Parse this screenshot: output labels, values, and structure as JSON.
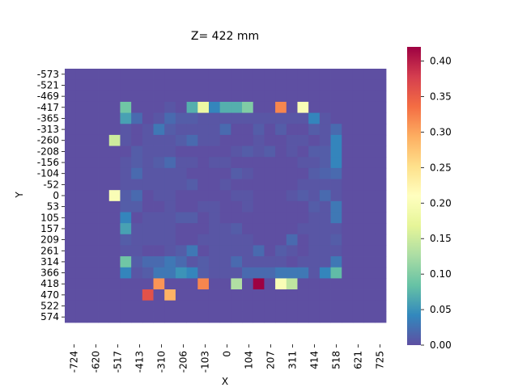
{
  "chart_data": {
    "type": "heatmap",
    "title": "Z= 422 mm",
    "xlabel": "X",
    "ylabel": "Y",
    "x_tick_labels": [
      "-724",
      "-620",
      "-517",
      "-413",
      "-310",
      "-206",
      "-103",
      "0",
      "104",
      "207",
      "311",
      "414",
      "518",
      "621",
      "725"
    ],
    "y_tick_labels": [
      "-573",
      "-521",
      "-469",
      "-417",
      "-365",
      "-313",
      "-260",
      "-208",
      "-156",
      "-104",
      "-52",
      "0",
      "53",
      "105",
      "157",
      "209",
      "261",
      "314",
      "366",
      "418",
      "470",
      "522",
      "574"
    ],
    "colorbar": {
      "colormap": "Spectral_r",
      "min": 0.0,
      "max": 0.42,
      "tick_labels": [
        "0.00",
        "0.05",
        "0.10",
        "0.15",
        "0.20",
        "0.25",
        "0.30",
        "0.35",
        "0.40"
      ]
    },
    "grid": false,
    "cells": [
      [
        0,
        0,
        0,
        0,
        0,
        0,
        0,
        0,
        0,
        0,
        0,
        0,
        0,
        0,
        0,
        0,
        0,
        0,
        0,
        0,
        0,
        0,
        0,
        0,
        0,
        0,
        0,
        0,
        0
      ],
      [
        0,
        0,
        0,
        0,
        0,
        0,
        0,
        0,
        0,
        0,
        0,
        0,
        0,
        0,
        0,
        0,
        0,
        0,
        0,
        0,
        0,
        0,
        0,
        0,
        0,
        0,
        0,
        0,
        0
      ],
      [
        0,
        0,
        0,
        0,
        0,
        0,
        0,
        0,
        0,
        0,
        0,
        0,
        0,
        0,
        0,
        0,
        0,
        0,
        0,
        0,
        0,
        0,
        0,
        0,
        0,
        0,
        0,
        0,
        0
      ],
      [
        0,
        0,
        0,
        0,
        0,
        0.09,
        0,
        0,
        0,
        0.005,
        0,
        0.07,
        0.18,
        0.04,
        0.07,
        0.07,
        0.1,
        0,
        0,
        0.32,
        0,
        0.2,
        0,
        0,
        0,
        0,
        0,
        0,
        0
      ],
      [
        0,
        0,
        0,
        0,
        0,
        0.06,
        0.02,
        0,
        0.005,
        0.02,
        0.01,
        0.01,
        0.005,
        0.005,
        0.005,
        0.005,
        0.005,
        0.005,
        0.005,
        0.005,
        0.005,
        0.005,
        0.04,
        0.005,
        0,
        0,
        0,
        0,
        0
      ],
      [
        0,
        0,
        0,
        0,
        0,
        0.005,
        0,
        0.005,
        0.03,
        0.01,
        0.005,
        0.005,
        0.005,
        0.005,
        0.02,
        0,
        0,
        0.01,
        0,
        0.01,
        0,
        0,
        0.01,
        0.005,
        0.02,
        0,
        0,
        0,
        0
      ],
      [
        0,
        0,
        0,
        0,
        0.15,
        0.005,
        0,
        0.005,
        0.005,
        0.005,
        0.01,
        0.02,
        0.005,
        0.005,
        0,
        0,
        0,
        0.005,
        0,
        0,
        0.005,
        0.005,
        0,
        0.005,
        0.04,
        0,
        0,
        0,
        0
      ],
      [
        0,
        0,
        0,
        0,
        0,
        0,
        0.01,
        0.005,
        0.005,
        0.005,
        0,
        0,
        0,
        0,
        0,
        0.005,
        0.01,
        0.005,
        0.01,
        0,
        0.005,
        0,
        0.01,
        0.01,
        0.04,
        0,
        0,
        0,
        0
      ],
      [
        0,
        0,
        0,
        0,
        0,
        0.005,
        0.01,
        0.005,
        0.01,
        0.02,
        0.005,
        0.005,
        0,
        0.005,
        0.005,
        0,
        0,
        0,
        0,
        0,
        0,
        0.005,
        0.005,
        0.01,
        0.04,
        0,
        0,
        0,
        0
      ],
      [
        0,
        0,
        0,
        0,
        0,
        0.005,
        0.02,
        0.005,
        0.005,
        0.005,
        0.005,
        0,
        0,
        0,
        0,
        0.01,
        0.005,
        0,
        0,
        0,
        0,
        0,
        0.01,
        0.015,
        0.02,
        0,
        0,
        0,
        0
      ],
      [
        0,
        0,
        0,
        0,
        0,
        0.005,
        0.005,
        0.005,
        0.005,
        0.005,
        0.005,
        0.01,
        0,
        0,
        0.005,
        0,
        0,
        0,
        0,
        0,
        0,
        0.005,
        0.005,
        0.005,
        0.005,
        0,
        0,
        0,
        0
      ],
      [
        0,
        0,
        0,
        0,
        0.2,
        0.01,
        0.02,
        0,
        0.005,
        0.005,
        0,
        0,
        0,
        0,
        0,
        0.005,
        0.005,
        0,
        0,
        0,
        0.005,
        0.01,
        0.005,
        0.02,
        0.005,
        0,
        0,
        0,
        0
      ],
      [
        0,
        0,
        0,
        0,
        0,
        0.01,
        0.01,
        0,
        0,
        0.005,
        0,
        0,
        0.005,
        0.005,
        0,
        0,
        0.005,
        0,
        0,
        0,
        0,
        0,
        0.01,
        0.005,
        0.03,
        0,
        0,
        0,
        0
      ],
      [
        0,
        0,
        0,
        0,
        0,
        0.04,
        0,
        0.005,
        0.005,
        0.005,
        0.01,
        0.01,
        0,
        0.005,
        0,
        0,
        0,
        0,
        0,
        0,
        0,
        0,
        0.005,
        0.005,
        0.03,
        0,
        0,
        0,
        0
      ],
      [
        0,
        0,
        0,
        0,
        0,
        0.06,
        0.005,
        0.005,
        0.005,
        0.005,
        0,
        0,
        0,
        0.005,
        0.005,
        0.01,
        0,
        0,
        0,
        0,
        0,
        0.005,
        0.005,
        0.005,
        0.005,
        0,
        0,
        0,
        0
      ],
      [
        0,
        0,
        0,
        0,
        0,
        0.01,
        0.005,
        0.005,
        0.005,
        0.005,
        0,
        0,
        0.005,
        0.005,
        0.005,
        0.005,
        0.005,
        0,
        0,
        0,
        0.02,
        0,
        0.005,
        0.005,
        0.01,
        0,
        0,
        0,
        0
      ],
      [
        0,
        0,
        0,
        0,
        0,
        0.005,
        0.005,
        0,
        0,
        0.005,
        0.01,
        0.03,
        0,
        0.005,
        0.005,
        0.005,
        0.005,
        0.02,
        0,
        0.01,
        0.005,
        0,
        0.005,
        0.005,
        0.005,
        0,
        0,
        0,
        0
      ],
      [
        0,
        0,
        0,
        0,
        0,
        0.09,
        0.01,
        0.02,
        0.02,
        0.03,
        0.02,
        0.005,
        0.01,
        0.005,
        0.005,
        0.02,
        0.005,
        0.005,
        0.005,
        0.005,
        0,
        0.005,
        0.005,
        0.005,
        0.03,
        0,
        0,
        0,
        0
      ],
      [
        0,
        0,
        0,
        0,
        0,
        0.04,
        0.005,
        0.01,
        0.03,
        0.03,
        0.05,
        0.04,
        0.01,
        0.005,
        0.005,
        0.005,
        0.02,
        0.02,
        0.02,
        0.03,
        0.03,
        0.03,
        0.005,
        0.04,
        0.08,
        0,
        0,
        0,
        0
      ],
      [
        0,
        0,
        0,
        0,
        0,
        0,
        0,
        0,
        0.31,
        0,
        0,
        0,
        0.32,
        0,
        0,
        0.13,
        0,
        0.42,
        0,
        0.2,
        0.14,
        0,
        0,
        0,
        0,
        0,
        0,
        0,
        0
      ],
      [
        0,
        0,
        0,
        0,
        0,
        0,
        0,
        0.36,
        0,
        0.29,
        0,
        0,
        0,
        0,
        0,
        0,
        0,
        0,
        0,
        0,
        0,
        0,
        0,
        0,
        0,
        0,
        0,
        0,
        0
      ],
      [
        0,
        0,
        0,
        0,
        0,
        0,
        0,
        0,
        0,
        0,
        0,
        0,
        0,
        0,
        0,
        0,
        0,
        0,
        0,
        0,
        0,
        0,
        0,
        0,
        0,
        0,
        0,
        0,
        0
      ],
      [
        0,
        0,
        0,
        0,
        0,
        0,
        0,
        0,
        0,
        0,
        0,
        0,
        0,
        0,
        0,
        0,
        0,
        0,
        0,
        0,
        0,
        0,
        0,
        0,
        0,
        0,
        0,
        0,
        0
      ]
    ]
  }
}
